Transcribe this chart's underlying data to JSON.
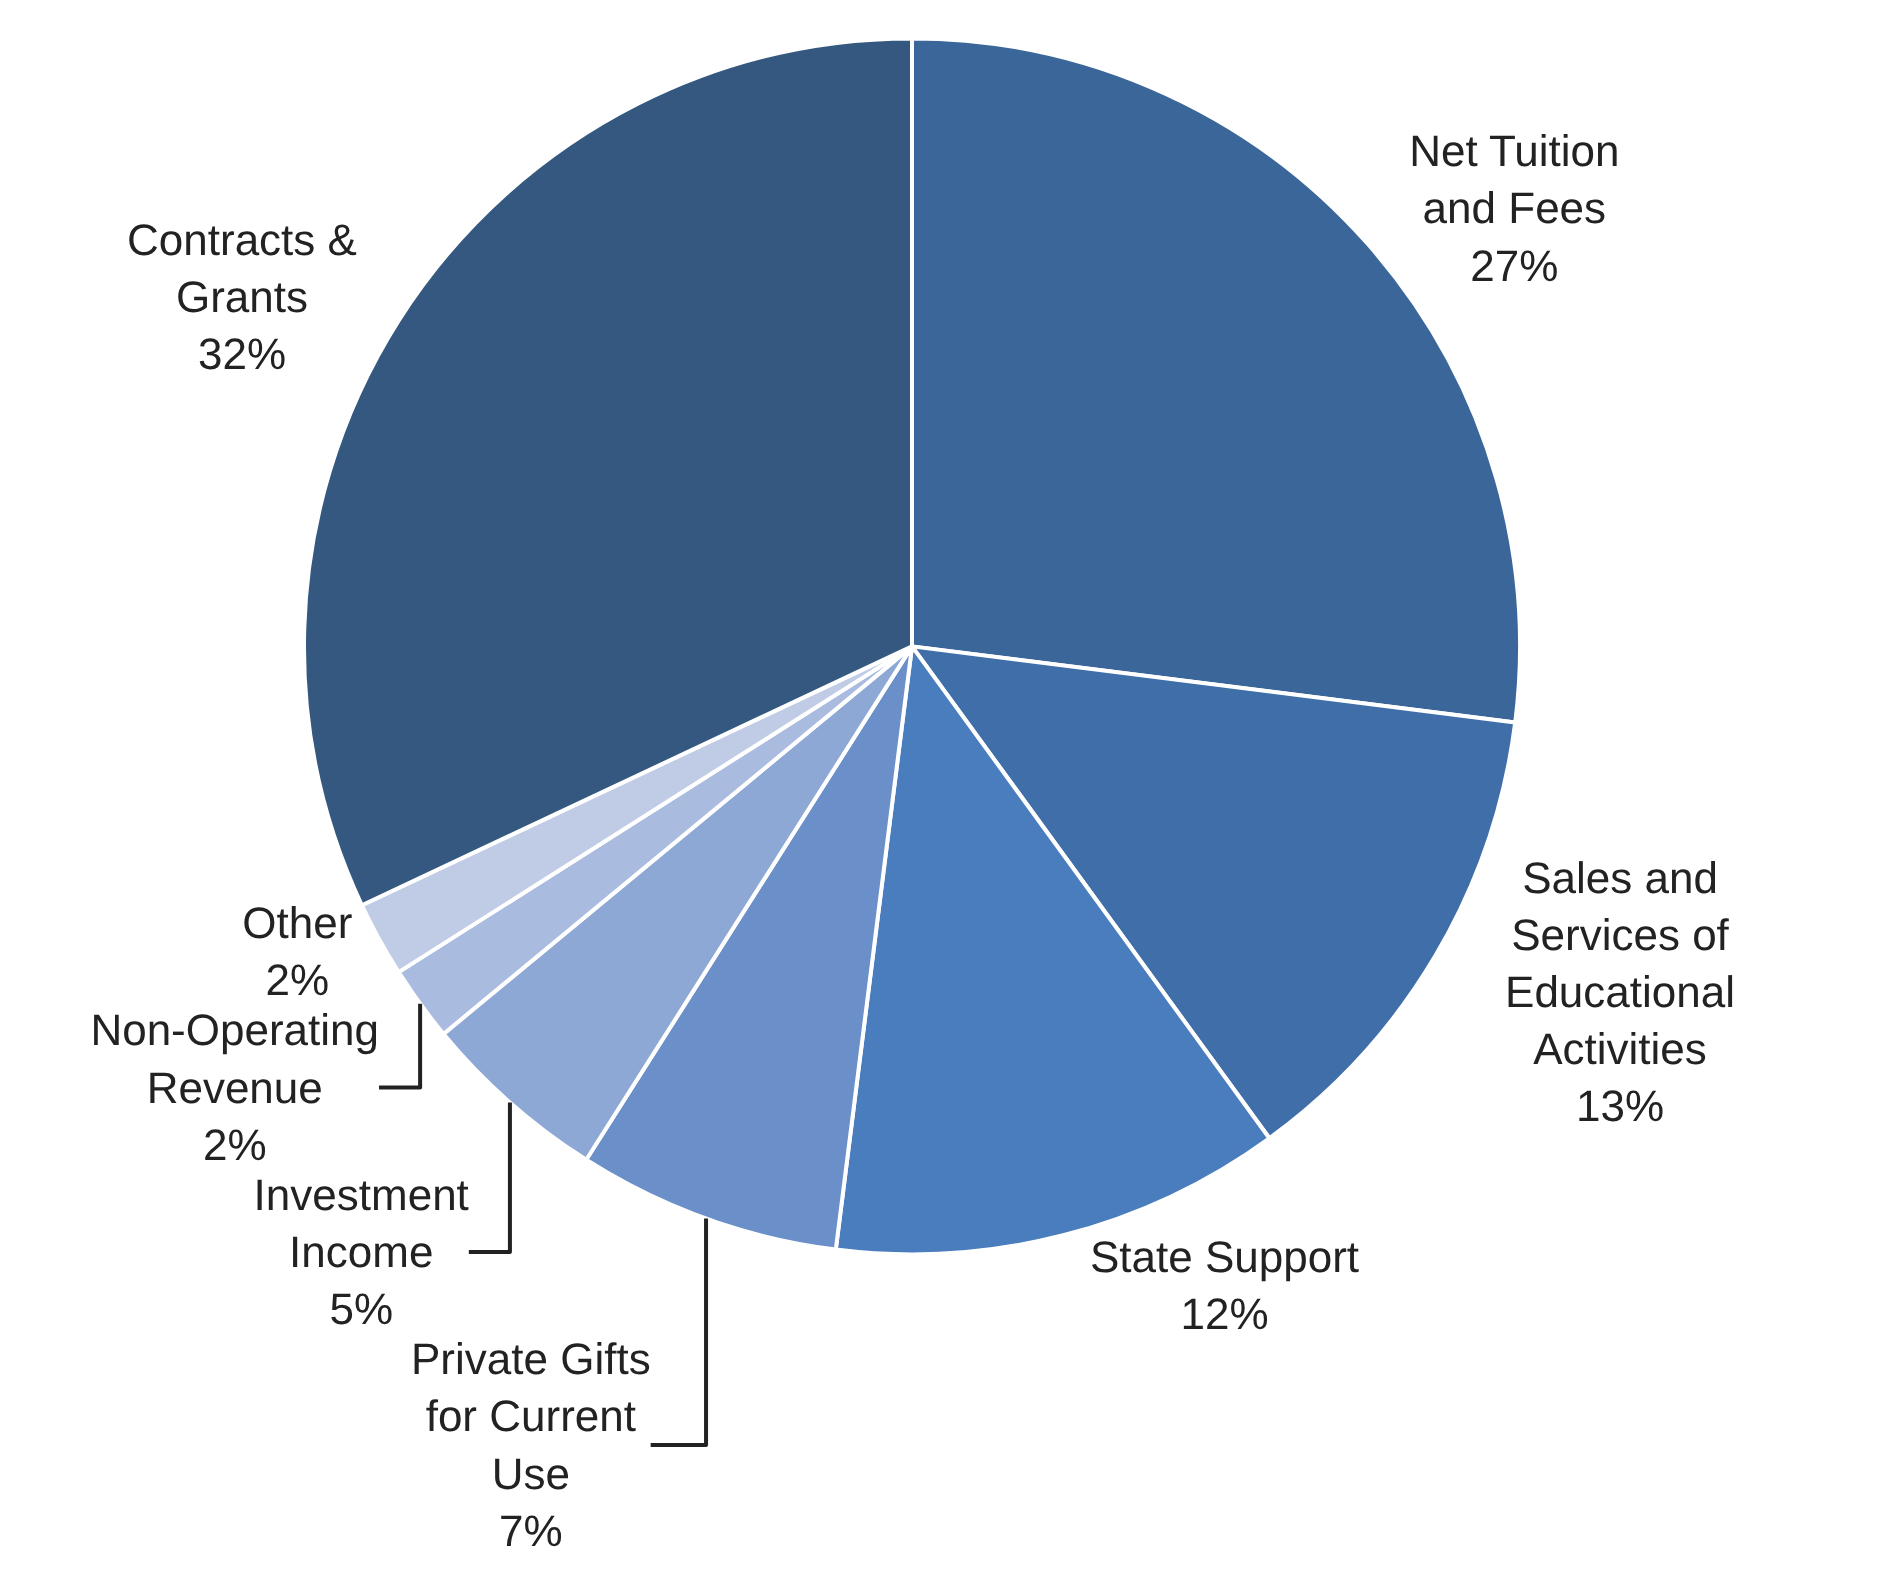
{
  "chart_data": {
    "type": "pie",
    "categories": [
      "Net Tuition and Fees",
      "Sales and Services of Educational Activities",
      "State Support",
      "Private Gifts for Current Use",
      "Investment Income",
      "Non-Operating Revenue",
      "Other",
      "Contracts & Grants"
    ],
    "values": [
      27,
      13,
      12,
      7,
      5,
      2,
      2,
      32
    ],
    "value_labels": [
      "27%",
      "13%",
      "12%",
      "7%",
      "5%",
      "2%",
      "2%",
      "32%"
    ],
    "colors": [
      "#3b6699",
      "#3f6ea8",
      "#4a7dbd",
      "#6b8fc8",
      "#8ea8d6",
      "#aabbe0",
      "#c0cce6",
      "#34587f"
    ],
    "legend": false
  }
}
